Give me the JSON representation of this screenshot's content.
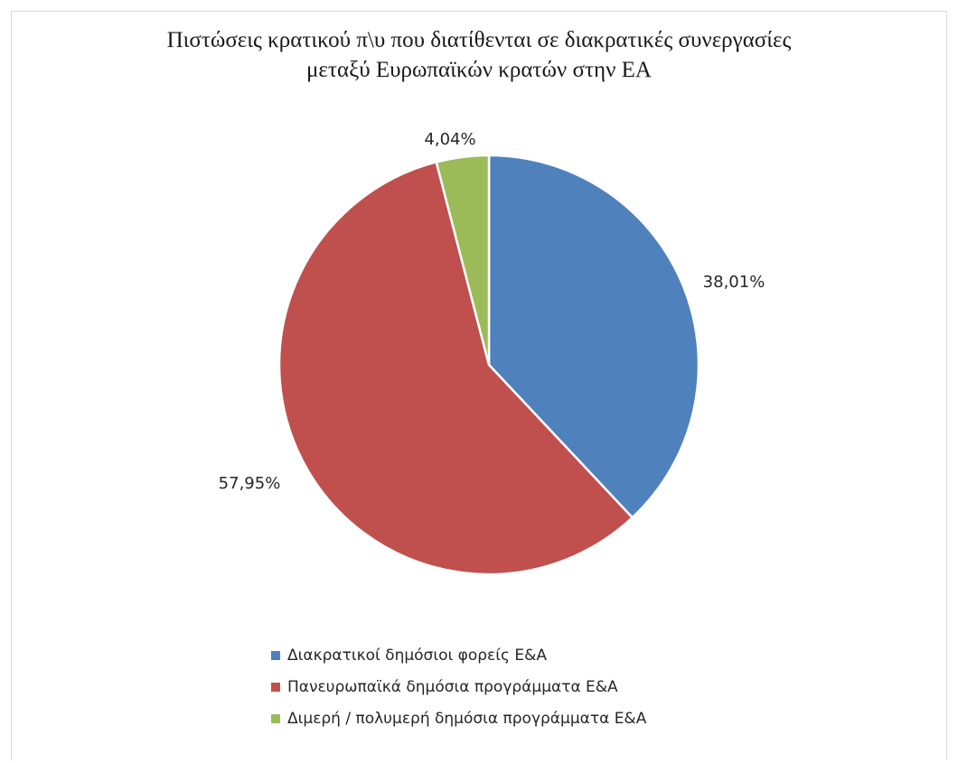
{
  "chart_data": {
    "type": "pie",
    "title": "Πιστώσεις κρατικού π\\υ που διατίθενται σε διακρατικές συνεργασίες μεταξύ Ευρωπαϊκών κρατών στην ΕΑ",
    "title_lines": [
      "Πιστώσεις κρατικού π\\υ που διατίθενται σε διακρατικές συνεργασίες",
      "μεταξύ Ευρωπαϊκών κρατών στην ΕΑ"
    ],
    "categories": [
      "Διακρατικοί δημόσιοι φορείς Ε&Α",
      "Πανευρωπαϊκά δημόσια προγράμματα Ε&Α",
      "Διμερή / πολυμερή δημόσια προγράμματα Ε&Α"
    ],
    "values": [
      38.01,
      57.95,
      4.04
    ],
    "data_labels": [
      "38,01%",
      "57,95%",
      "4,04%"
    ],
    "colors": [
      "#4f81bd",
      "#c0504d",
      "#9bbb59"
    ],
    "legend_position": "bottom"
  }
}
